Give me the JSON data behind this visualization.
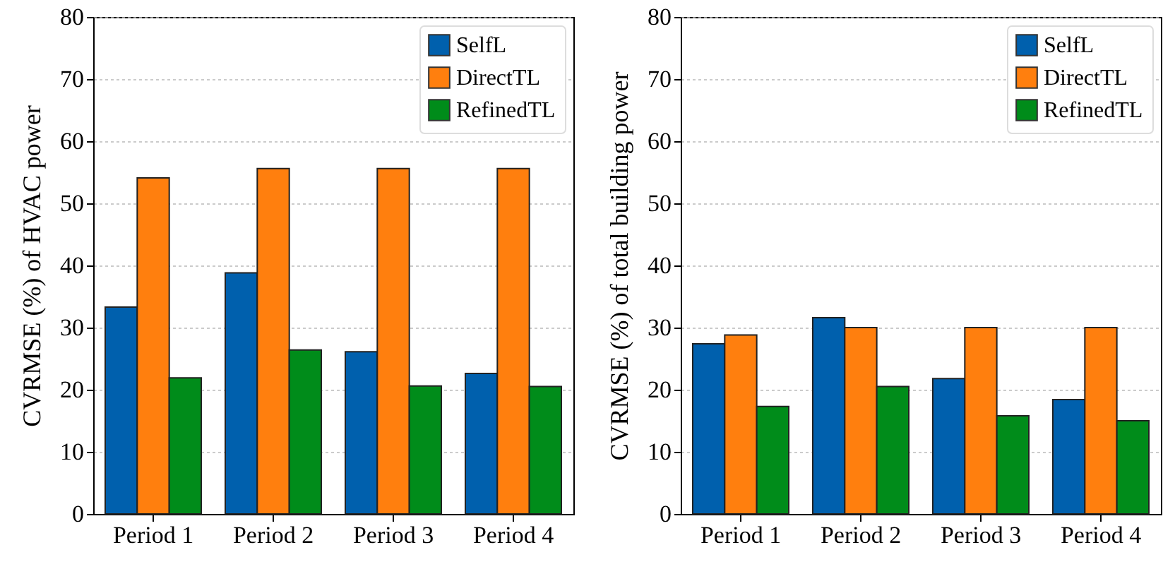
{
  "chart_data": [
    {
      "type": "bar",
      "ylabel": "CVRMSE (%) of HVAC power",
      "categories": [
        "Period 1",
        "Period 2",
        "Period 3",
        "Period 4"
      ],
      "series": [
        {
          "name": "SelfL",
          "color": "#0060ad",
          "values": [
            33.3,
            38.8,
            26.1,
            22.6
          ]
        },
        {
          "name": "DirectTL",
          "color": "#ff7f0e",
          "values": [
            54.1,
            55.6,
            55.6,
            55.6
          ]
        },
        {
          "name": "RefinedTL",
          "color": "#008c1a",
          "values": [
            21.9,
            26.4,
            20.6,
            20.5
          ]
        }
      ],
      "ylim": [
        0,
        80
      ],
      "yticks": [
        0,
        10,
        20,
        30,
        40,
        50,
        60,
        70,
        80
      ],
      "grid": "y",
      "legend": "top right"
    },
    {
      "type": "bar",
      "ylabel": "CVRMSE (%) of total building power",
      "categories": [
        "Period 1",
        "Period 2",
        "Period 3",
        "Period 4"
      ],
      "series": [
        {
          "name": "SelfL",
          "color": "#0060ad",
          "values": [
            27.4,
            31.6,
            21.8,
            18.4
          ]
        },
        {
          "name": "DirectTL",
          "color": "#ff7f0e",
          "values": [
            28.8,
            30.0,
            30.0,
            30.0
          ]
        },
        {
          "name": "RefinedTL",
          "color": "#008c1a",
          "values": [
            17.3,
            20.5,
            15.8,
            15.0
          ]
        }
      ],
      "ylim": [
        0,
        80
      ],
      "yticks": [
        0,
        10,
        20,
        30,
        40,
        50,
        60,
        70,
        80
      ],
      "grid": "y",
      "legend": "top right"
    }
  ]
}
